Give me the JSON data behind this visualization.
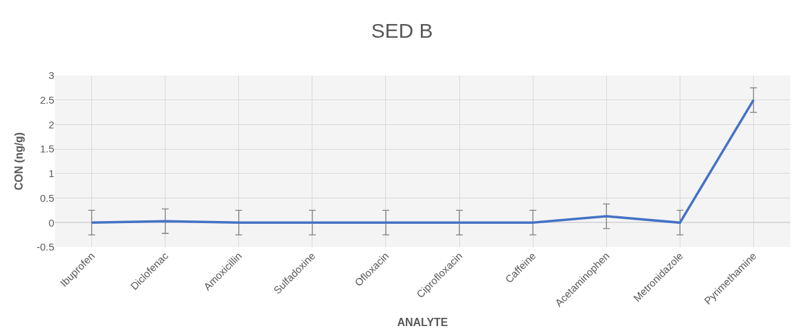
{
  "chart_data": {
    "type": "line",
    "title": "SED B",
    "xlabel": "ANALYTE",
    "ylabel": "CON (ng/g)",
    "categories": [
      "Ibuprofen",
      "Diclofenac",
      "Amoxicillin",
      "Sulfadoxine",
      "Ofloxacin",
      "Ciprofloxacin",
      "Caffeine",
      "Acetaminophen",
      "Metronidazole",
      "Pyrimethamine"
    ],
    "series": [
      {
        "color": "#4472c4",
        "values": [
          0,
          0.03,
          0,
          0,
          0,
          0,
          0,
          0.13,
          0,
          2.5
        ],
        "errors": [
          0.25,
          0.25,
          0.25,
          0.25,
          0.25,
          0.25,
          0.25,
          0.25,
          0.25,
          0.25
        ]
      }
    ],
    "ylim": [
      -0.5,
      3
    ],
    "yticks": [
      -0.5,
      0,
      0.5,
      1,
      1.5,
      2,
      2.5,
      3
    ],
    "grid": true,
    "marker": "none",
    "line_style": "solid"
  }
}
